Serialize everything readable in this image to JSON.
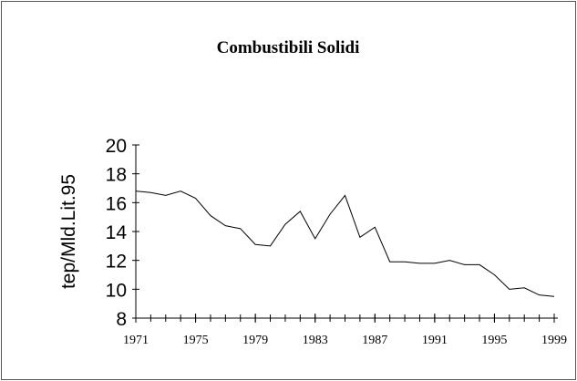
{
  "chart_data": {
    "type": "line",
    "title": "Combustibili Solidi",
    "y_label": "tep/Mld.Lit.95",
    "x": [
      1971,
      1972,
      1973,
      1974,
      1975,
      1976,
      1977,
      1978,
      1979,
      1980,
      1981,
      1982,
      1983,
      1984,
      1985,
      1986,
      1987,
      1988,
      1989,
      1990,
      1991,
      1992,
      1993,
      1994,
      1995,
      1996,
      1997,
      1998,
      1999
    ],
    "series": [
      {
        "name": "Combustibili Solidi",
        "color": "#000000",
        "values": [
          16.8,
          16.7,
          16.5,
          16.8,
          16.3,
          15.1,
          14.4,
          14.2,
          13.1,
          13.0,
          14.5,
          15.4,
          13.5,
          15.2,
          16.5,
          13.6,
          14.3,
          11.9,
          11.9,
          11.8,
          11.8,
          12.0,
          11.7,
          11.7,
          11.0,
          10.0,
          10.1,
          9.6,
          9.5
        ]
      }
    ],
    "xlim": [
      1971,
      1999
    ],
    "xticks": [
      1971,
      1975,
      1979,
      1983,
      1987,
      1991,
      1995,
      1999
    ],
    "ylim": [
      8,
      20
    ],
    "yticks": [
      8,
      10,
      12,
      14,
      16,
      18,
      20
    ]
  }
}
